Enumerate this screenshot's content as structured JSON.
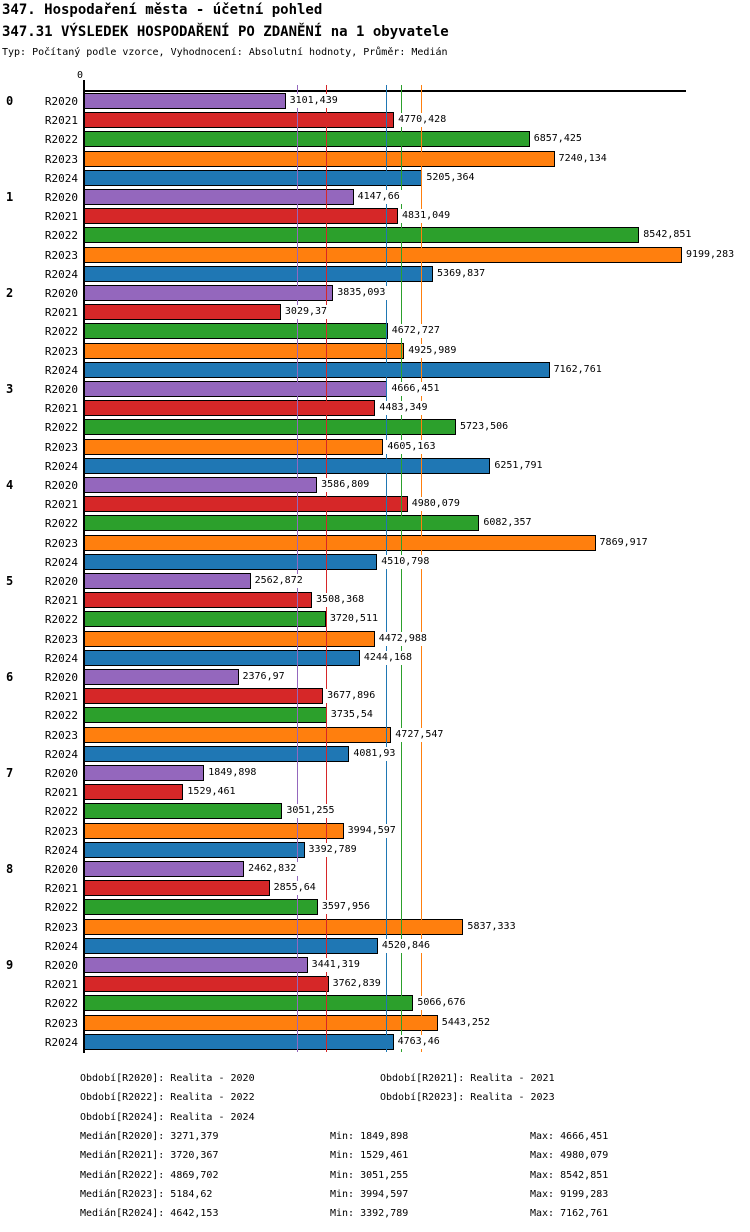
{
  "header": {
    "title1": "347. Hospodaření města - účetní pohled",
    "title2": "347.31 VÝSLEDEK HOSPODAŘENÍ PO ZDANĚNÍ na 1 obyvatele",
    "subtitle": "Typ: Počítaný podle vzorce, Vyhodnocení: Absolutní hodnoty, Průměr: Medián"
  },
  "chart_data": {
    "type": "bar",
    "orientation": "horizontal",
    "title": "347.31 VÝSLEDEK HOSPODAŘENÍ PO ZDANĚNÍ na 1 obyvatele",
    "axis_zero_label": "0",
    "xlim": [
      0,
      9200
    ],
    "grid": false,
    "legend_position": "none",
    "series": [
      "R2020",
      "R2021",
      "R2022",
      "R2023",
      "R2024"
    ],
    "colors": {
      "R2020": "#9467bd",
      "R2021": "#d62728",
      "R2022": "#2ca02c",
      "R2023": "#ff7f0e",
      "R2024": "#1f77b4"
    },
    "groups": [
      {
        "label": "0",
        "values": [
          "3101,439",
          "4770,428",
          "6857,425",
          "7240,134",
          "5205,364"
        ]
      },
      {
        "label": "1",
        "values": [
          "4147,66",
          "4831,049",
          "8542,851",
          "9199,283",
          "5369,837"
        ]
      },
      {
        "label": "2",
        "values": [
          "3835,093",
          "3029,37",
          "4672,727",
          "4925,989",
          "7162,761"
        ]
      },
      {
        "label": "3",
        "values": [
          "4666,451",
          "4483,349",
          "5723,506",
          "4605,163",
          "6251,791"
        ]
      },
      {
        "label": "4",
        "values": [
          "3586,809",
          "4980,079",
          "6082,357",
          "7869,917",
          "4510,798"
        ]
      },
      {
        "label": "5",
        "values": [
          "2562,872",
          "3508,368",
          "3720,511",
          "4472,988",
          "4244,168"
        ]
      },
      {
        "label": "6",
        "values": [
          "2376,97",
          "3677,896",
          "3735,54",
          "4727,547",
          "4081,93"
        ]
      },
      {
        "label": "7",
        "values": [
          "1849,898",
          "1529,461",
          "3051,255",
          "3994,597",
          "3392,789"
        ]
      },
      {
        "label": "8",
        "values": [
          "2462,832",
          "2855,64",
          "3597,956",
          "5837,333",
          "4520,846"
        ]
      },
      {
        "label": "9",
        "values": [
          "3441,319",
          "3762,839",
          "5066,676",
          "5443,252",
          "4763,46"
        ]
      }
    ],
    "median_lines": [
      {
        "series": "R2020",
        "value": "3271,379",
        "color": "#9467bd"
      },
      {
        "series": "R2021",
        "value": "3720,367",
        "color": "#d62728"
      },
      {
        "series": "R2022",
        "value": "4869,702",
        "color": "#2ca02c"
      },
      {
        "series": "R2023",
        "value": "5184,62",
        "color": "#ff7f0e"
      },
      {
        "series": "R2024",
        "value": "4642,153",
        "color": "#1f77b4"
      }
    ]
  },
  "footer": {
    "periods": [
      {
        "left": "Období[R2020]: Realita - 2020",
        "right": "Období[R2021]: Realita - 2021"
      },
      {
        "left": "Období[R2022]: Realita - 2022",
        "right": "Období[R2023]: Realita - 2023"
      },
      {
        "left": "Období[R2024]: Realita - 2024",
        "right": ""
      }
    ],
    "stats": [
      {
        "median": "Medián[R2020]: 3271,379",
        "min": "Min: 1849,898",
        "max": "Max: 4666,451"
      },
      {
        "median": "Medián[R2021]: 3720,367",
        "min": "Min: 1529,461",
        "max": "Max: 4980,079"
      },
      {
        "median": "Medián[R2022]: 4869,702",
        "min": "Min: 3051,255",
        "max": "Max: 8542,851"
      },
      {
        "median": "Medián[R2023]: 5184,62",
        "min": "Min: 3994,597",
        "max": "Max: 9199,283"
      },
      {
        "median": "Medián[R2024]: 4642,153",
        "min": "Min: 3392,789",
        "max": "Max: 7162,761"
      }
    ]
  }
}
